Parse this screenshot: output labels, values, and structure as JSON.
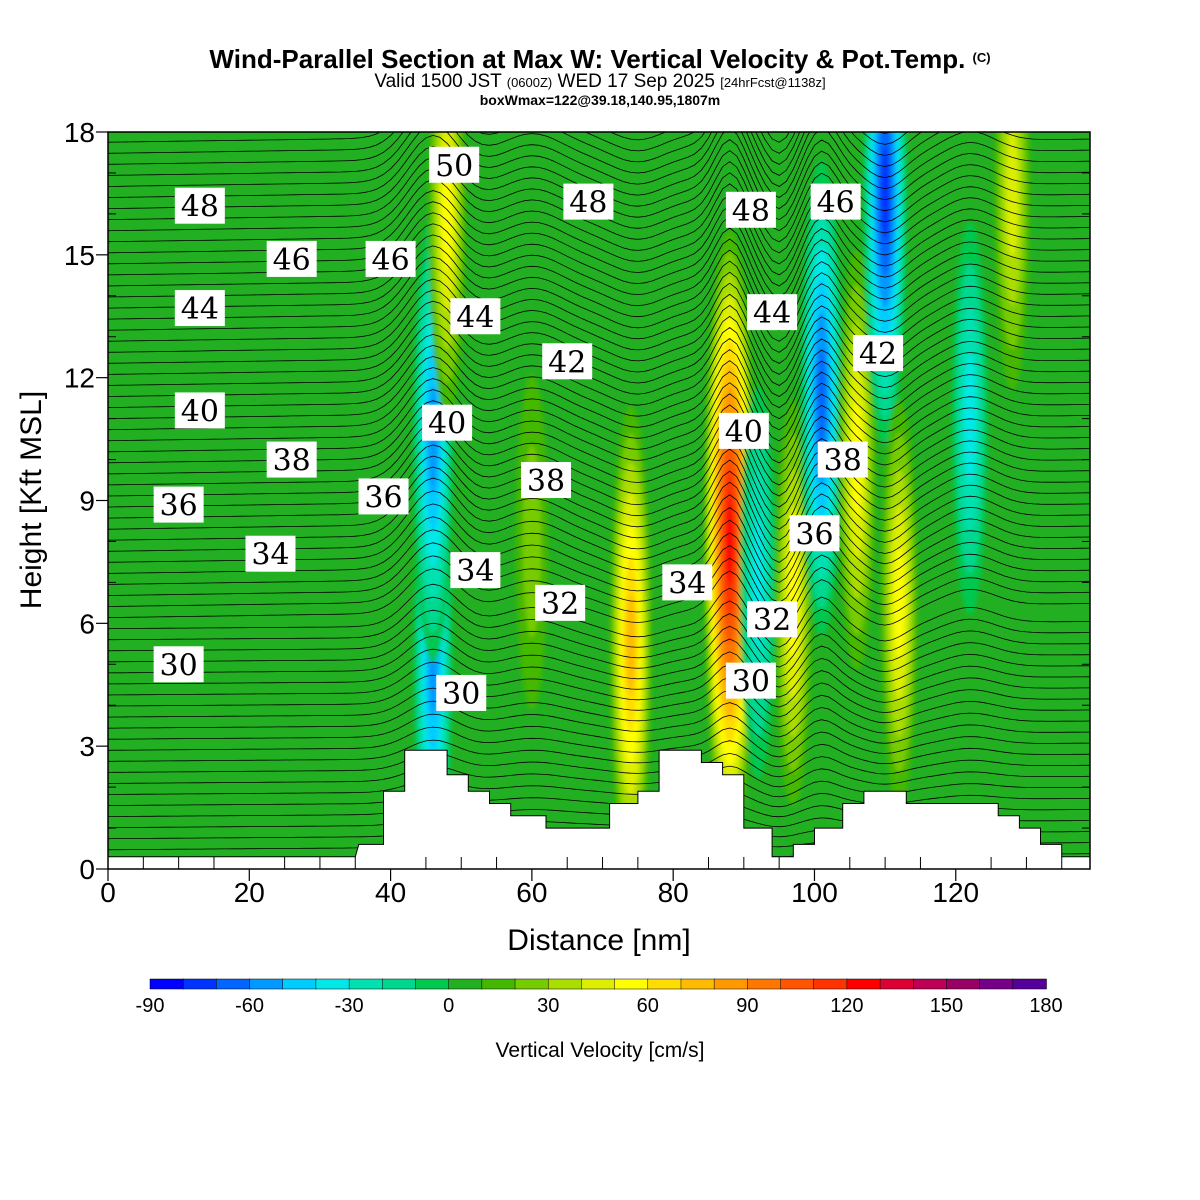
{
  "title": {
    "main": "Wind-Parallel Section at Max W: Vertical Velocity & Pot.Temp.",
    "main_tag": "(C)",
    "valid_prefix": "Valid 1500 JST",
    "valid_utc": "(0600Z)",
    "valid_date": "WED 17 Sep 2025",
    "forecast_tag": "[24hrFcst@1138z]",
    "box_info": "boxWmax=122@39.18,140.95,1807m"
  },
  "chart_data": {
    "type": "heatmap",
    "title": "Wind-Parallel Section at Max W: Vertical Velocity & Pot.Temp.",
    "xlabel": "Distance [nm]",
    "ylabel": "Height [Kft MSL]",
    "xlim": [
      0,
      139
    ],
    "ylim": [
      0,
      18
    ],
    "x_ticks": [
      0,
      20,
      40,
      60,
      80,
      100,
      120
    ],
    "y_ticks": [
      0,
      3,
      6,
      9,
      12,
      15,
      18
    ],
    "colorbar": {
      "label": "Vertical Velocity [cm/s]",
      "ticks": [
        -90,
        -60,
        -30,
        0,
        30,
        60,
        90,
        120,
        150,
        180
      ],
      "levels": [
        -90,
        -80,
        -70,
        -60,
        -50,
        -40,
        -30,
        -20,
        -10,
        0,
        10,
        20,
        30,
        40,
        50,
        60,
        70,
        80,
        90,
        100,
        110,
        120,
        130,
        140,
        150,
        160,
        170,
        180
      ],
      "colors": [
        "#0000ff",
        "#0033ff",
        "#0066ff",
        "#0099ff",
        "#00ccff",
        "#00e8e8",
        "#00e0b0",
        "#00d890",
        "#00c850",
        "#22b022",
        "#44b800",
        "#77cc00",
        "#aadd00",
        "#ddee00",
        "#ffff00",
        "#ffdd00",
        "#ffbb00",
        "#ff9900",
        "#ff7700",
        "#ff5500",
        "#ff3300",
        "#ff0000",
        "#dd0033",
        "#bb0055",
        "#990066",
        "#770088",
        "#550099"
      ]
    },
    "w_features_cms": [
      {
        "x": 46,
        "y": 5.0,
        "w": -55
      },
      {
        "x": 46,
        "y": 10.5,
        "w": -60
      },
      {
        "x": 48,
        "y": 16.0,
        "w": 45
      },
      {
        "x": 60,
        "y": 8.0,
        "w": 20
      },
      {
        "x": 74,
        "y": 5.5,
        "w": 70
      },
      {
        "x": 88,
        "y": 8.0,
        "w": 122
      },
      {
        "x": 92,
        "y": 7.0,
        "w": -40
      },
      {
        "x": 97,
        "y": 6.5,
        "w": 45
      },
      {
        "x": 101,
        "y": 11.5,
        "w": -70
      },
      {
        "x": 106,
        "y": 10.0,
        "w": 50
      },
      {
        "x": 110,
        "y": 16.5,
        "w": -80
      },
      {
        "x": 112,
        "y": 6.5,
        "w": 45
      },
      {
        "x": 122,
        "y": 11.0,
        "w": -40
      },
      {
        "x": 128,
        "y": 16.5,
        "w": 40
      }
    ],
    "theta_contour_labels": [
      {
        "value": "48",
        "x": 13,
        "y": 16.2
      },
      {
        "value": "46",
        "x": 26,
        "y": 14.9
      },
      {
        "value": "46",
        "x": 40,
        "y": 14.9
      },
      {
        "value": "50",
        "x": 49,
        "y": 17.2
      },
      {
        "value": "48",
        "x": 68,
        "y": 16.3
      },
      {
        "value": "48",
        "x": 91,
        "y": 16.1
      },
      {
        "value": "46",
        "x": 103,
        "y": 16.3
      },
      {
        "value": "44",
        "x": 13,
        "y": 13.7
      },
      {
        "value": "44",
        "x": 52,
        "y": 13.5
      },
      {
        "value": "44",
        "x": 94,
        "y": 13.6
      },
      {
        "value": "42",
        "x": 65,
        "y": 12.4
      },
      {
        "value": "42",
        "x": 109,
        "y": 12.6
      },
      {
        "value": "40",
        "x": 13,
        "y": 11.2
      },
      {
        "value": "40",
        "x": 48,
        "y": 10.9
      },
      {
        "value": "40",
        "x": 90,
        "y": 10.7
      },
      {
        "value": "38",
        "x": 26,
        "y": 10.0
      },
      {
        "value": "38",
        "x": 62,
        "y": 9.5
      },
      {
        "value": "38",
        "x": 104,
        "y": 10.0
      },
      {
        "value": "36",
        "x": 10,
        "y": 8.9
      },
      {
        "value": "36",
        "x": 39,
        "y": 9.1
      },
      {
        "value": "36",
        "x": 100,
        "y": 8.2
      },
      {
        "value": "34",
        "x": 23,
        "y": 7.7
      },
      {
        "value": "34",
        "x": 52,
        "y": 7.3
      },
      {
        "value": "34",
        "x": 82,
        "y": 7.0
      },
      {
        "value": "32",
        "x": 64,
        "y": 6.5
      },
      {
        "value": "32",
        "x": 94,
        "y": 6.1
      },
      {
        "value": "30",
        "x": 10,
        "y": 5.0
      },
      {
        "value": "30",
        "x": 50,
        "y": 4.3
      },
      {
        "value": "30",
        "x": 91,
        "y": 4.6
      }
    ],
    "terrain_kft": [
      [
        0,
        0.3
      ],
      [
        35,
        0.3
      ],
      [
        35.5,
        0.6
      ],
      [
        39,
        0.6
      ],
      [
        39,
        1.9
      ],
      [
        42,
        1.9
      ],
      [
        42,
        2.9
      ],
      [
        48,
        2.9
      ],
      [
        48,
        2.3
      ],
      [
        51,
        2.3
      ],
      [
        51,
        1.9
      ],
      [
        54,
        1.9
      ],
      [
        54,
        1.6
      ],
      [
        57,
        1.6
      ],
      [
        57,
        1.3
      ],
      [
        62,
        1.3
      ],
      [
        62,
        1.0
      ],
      [
        67,
        1.0
      ],
      [
        67,
        1.0
      ],
      [
        71,
        1.0
      ],
      [
        71,
        1.6
      ],
      [
        75,
        1.6
      ],
      [
        75,
        1.9
      ],
      [
        78,
        1.9
      ],
      [
        78,
        2.9
      ],
      [
        84,
        2.9
      ],
      [
        84,
        2.6
      ],
      [
        87,
        2.6
      ],
      [
        87,
        2.3
      ],
      [
        90,
        2.3
      ],
      [
        90,
        1.0
      ],
      [
        94,
        1.0
      ],
      [
        94,
        0.3
      ],
      [
        97,
        0.3
      ],
      [
        97,
        0.6
      ],
      [
        100,
        0.6
      ],
      [
        100,
        1.0
      ],
      [
        104,
        1.0
      ],
      [
        104,
        1.6
      ],
      [
        107,
        1.6
      ],
      [
        107,
        1.9
      ],
      [
        113,
        1.9
      ],
      [
        113,
        1.6
      ],
      [
        126,
        1.6
      ],
      [
        126,
        1.3
      ],
      [
        129,
        1.3
      ],
      [
        129,
        1.0
      ],
      [
        132,
        1.0
      ],
      [
        132,
        0.6
      ],
      [
        135,
        0.6
      ],
      [
        135,
        0.3
      ],
      [
        139,
        0.3
      ],
      [
        139,
        0
      ]
    ]
  }
}
